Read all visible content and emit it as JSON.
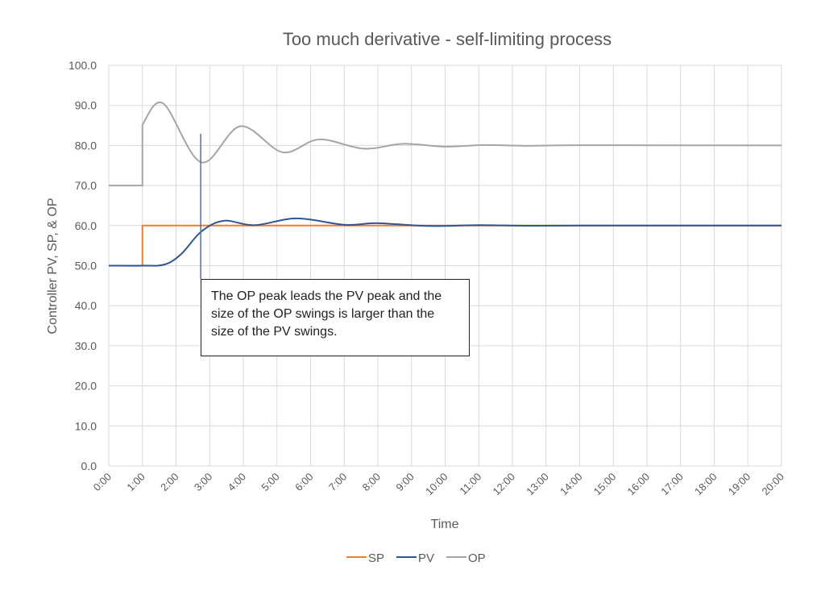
{
  "chart_data": {
    "type": "line",
    "title": "Too much derivative - self-limiting process",
    "xlabel": "Time",
    "ylabel": "Controller PV, SP, & OP",
    "xlim": [
      "0:00",
      "20:00"
    ],
    "ylim": [
      0,
      100
    ],
    "x_ticks": [
      "0:00",
      "1:00",
      "2:00",
      "3:00",
      "4:00",
      "5:00",
      "6:00",
      "7:00",
      "8:00",
      "9:00",
      "10:00",
      "11:00",
      "12:00",
      "13:00",
      "14:00",
      "15:00",
      "16:00",
      "17:00",
      "18:00",
      "19:00",
      "20:00"
    ],
    "y_ticks": [
      "0.0",
      "10.0",
      "20.0",
      "30.0",
      "40.0",
      "50.0",
      "60.0",
      "70.0",
      "80.0",
      "90.0",
      "100.0"
    ],
    "grid": true,
    "legend": "bottom",
    "series": [
      {
        "name": "SP",
        "color": "#ED7D31",
        "points": [
          [
            "0:00",
            50
          ],
          [
            "1:00",
            50
          ],
          [
            "1:00",
            60
          ],
          [
            "20:00",
            60
          ]
        ]
      },
      {
        "name": "PV",
        "color": "#2F5597",
        "points": [
          [
            "0:00",
            50
          ],
          [
            "1:00",
            50
          ],
          [
            "1:40",
            50.3
          ],
          [
            "2:10",
            53
          ],
          [
            "2:45",
            58.5
          ],
          [
            "3:25",
            61.2
          ],
          [
            "4:20",
            60.1
          ],
          [
            "5:35",
            61.8
          ],
          [
            "7:00",
            60.2
          ],
          [
            "8:00",
            60.6
          ],
          [
            "9:30",
            59.9
          ],
          [
            "11:00",
            60.1
          ],
          [
            "12:30",
            59.95
          ],
          [
            "14:00",
            60
          ],
          [
            "20:00",
            60
          ]
        ]
      },
      {
        "name": "OP",
        "color": "#A5A5A5",
        "points": [
          [
            "0:00",
            70
          ],
          [
            "1:00",
            70
          ],
          [
            "1:00",
            85.2
          ],
          [
            "1:37",
            90.5
          ],
          [
            "2:45",
            75.8
          ],
          [
            "3:55",
            84.8
          ],
          [
            "5:10",
            78.3
          ],
          [
            "6:15",
            81.5
          ],
          [
            "7:35",
            79.2
          ],
          [
            "8:45",
            80.4
          ],
          [
            "10:00",
            79.7
          ],
          [
            "11:10",
            80.1
          ],
          [
            "12:30",
            79.9
          ],
          [
            "14:00",
            80.05
          ],
          [
            "20:00",
            80
          ]
        ]
      }
    ],
    "annotation": {
      "text": "The OP peak leads the PV peak and the size of the OP swings is larger than the size of the PV swings.",
      "marker_time": "2:44",
      "marker_color": "#4472C4"
    }
  }
}
